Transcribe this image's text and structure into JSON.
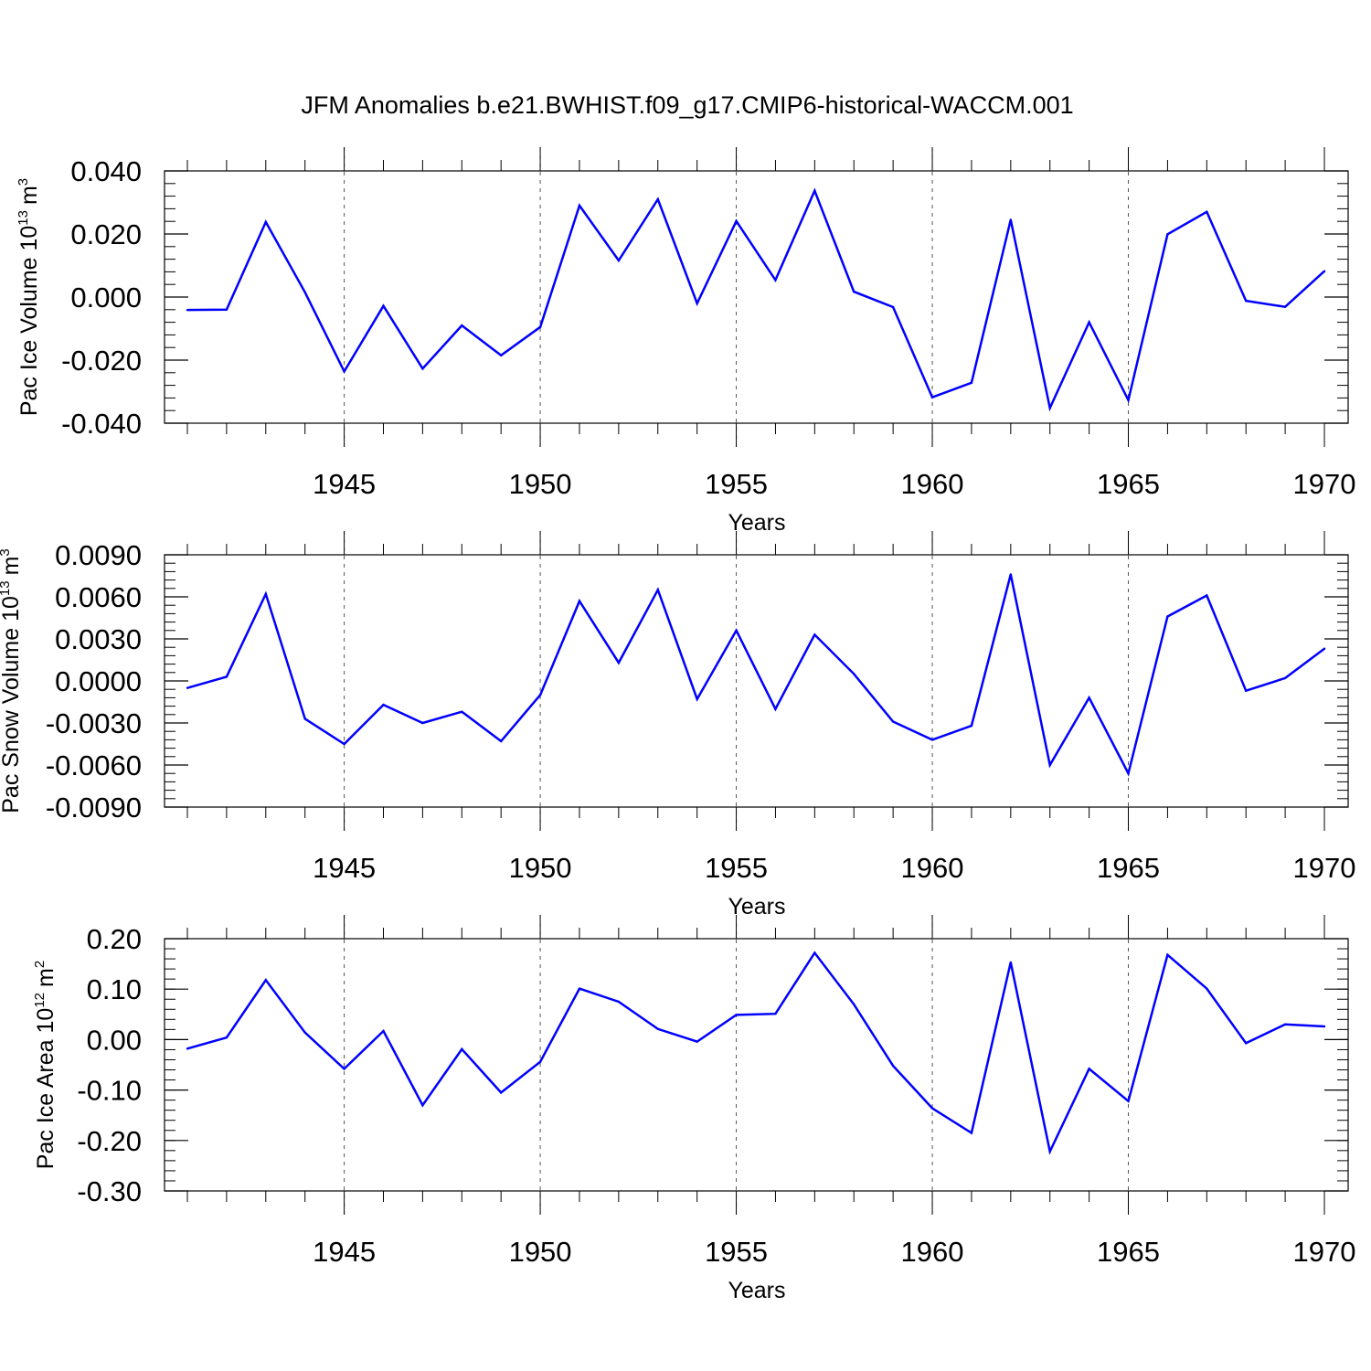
{
  "figure_title": "JFM Anomalies b.e21.BWHIST.f09_g17.CMIP6-historical-WACCM.001",
  "colors": {
    "line": "#0000ff",
    "axis": "#000000",
    "grid": "#555555"
  },
  "chart_data": [
    {
      "type": "line",
      "title": "",
      "xlabel": "Years",
      "ylabel": {
        "text": "Pac Ice Volume 10",
        "exponent": "13",
        "unit": "m",
        "unit_exponent": "3"
      },
      "xlim": [
        1941,
        1970
      ],
      "ylim": [
        -0.04,
        0.04
      ],
      "xticks": [
        "1945",
        "1950",
        "1955",
        "1960",
        "1965",
        "1970"
      ],
      "yticks": [
        "0.040",
        "0.020",
        "0.000",
        "-0.020",
        "-0.040"
      ],
      "ytick_values": [
        0.04,
        0.02,
        0.0,
        -0.02,
        -0.04
      ],
      "ygrid": false,
      "xgrid_dashed": [
        1945,
        1950,
        1955,
        1960,
        1965
      ],
      "x": [
        1941,
        1942,
        1943,
        1944,
        1945,
        1946,
        1947,
        1948,
        1949,
        1950,
        1951,
        1952,
        1953,
        1954,
        1955,
        1956,
        1957,
        1958,
        1959,
        1960,
        1961,
        1962,
        1963,
        1964,
        1965,
        1966,
        1967,
        1968,
        1969,
        1970
      ],
      "series": [
        {
          "name": "Pac Ice Volume",
          "values": [
            -0.0041,
            -0.004,
            0.0238,
            0.0015,
            -0.0236,
            -0.0028,
            -0.0227,
            -0.009,
            -0.0185,
            -0.0095,
            0.029,
            0.0116,
            0.031,
            -0.002,
            0.0241,
            0.0054,
            0.0337,
            0.0017,
            -0.0032,
            -0.0318,
            -0.0272,
            0.0245,
            -0.0352,
            -0.008,
            -0.0327,
            0.0199,
            0.027,
            -0.0012,
            -0.0031,
            0.0082
          ]
        }
      ]
    },
    {
      "type": "line",
      "title": "",
      "xlabel": "Years",
      "ylabel": {
        "text": "Pac Snow Volume 10",
        "exponent": "13",
        "unit": "m",
        "unit_exponent": "3"
      },
      "xlim": [
        1941,
        1970
      ],
      "ylim": [
        -0.009,
        0.009
      ],
      "xticks": [
        "1945",
        "1950",
        "1955",
        "1960",
        "1965",
        "1970"
      ],
      "yticks": [
        "0.0090",
        "0.0060",
        "0.0030",
        "0.0000",
        "-0.0030",
        "-0.0060",
        "-0.0090"
      ],
      "ytick_values": [
        0.009,
        0.006,
        0.003,
        0.0,
        -0.003,
        -0.006,
        -0.009
      ],
      "ygrid": false,
      "xgrid_dashed": [
        1945,
        1950,
        1955,
        1960,
        1965
      ],
      "x": [
        1941,
        1942,
        1943,
        1944,
        1945,
        1946,
        1947,
        1948,
        1949,
        1950,
        1951,
        1952,
        1953,
        1954,
        1955,
        1956,
        1957,
        1958,
        1959,
        1960,
        1961,
        1962,
        1963,
        1964,
        1965,
        1966,
        1967,
        1968,
        1969,
        1970
      ],
      "series": [
        {
          "name": "Pac Snow Volume",
          "values": [
            -0.0005,
            0.0003,
            0.0062,
            -0.0027,
            -0.0045,
            -0.0017,
            -0.003,
            -0.0022,
            -0.0043,
            -0.001,
            0.0057,
            0.0013,
            0.0065,
            -0.0013,
            0.0036,
            -0.002,
            0.0033,
            0.0005,
            -0.0029,
            -0.0042,
            -0.0032,
            0.0076,
            -0.006,
            -0.0012,
            -0.0066,
            0.0046,
            0.0061,
            -0.0007,
            0.0002,
            0.0023
          ]
        }
      ]
    },
    {
      "type": "line",
      "title": "",
      "xlabel": "Years",
      "ylabel": {
        "text": "Pac Ice Area 10",
        "exponent": "12",
        "unit": "m",
        "unit_exponent": "2"
      },
      "xlim": [
        1941,
        1970
      ],
      "ylim": [
        -0.3,
        0.2
      ],
      "xticks": [
        "1945",
        "1950",
        "1955",
        "1960",
        "1965",
        "1970"
      ],
      "yticks": [
        "0.20",
        "0.10",
        "0.00",
        "-0.10",
        "-0.20",
        "-0.30"
      ],
      "ytick_values": [
        0.2,
        0.1,
        0.0,
        -0.1,
        -0.2,
        -0.3
      ],
      "ygrid": false,
      "xgrid_dashed": [
        1945,
        1950,
        1955,
        1960,
        1965
      ],
      "x": [
        1941,
        1942,
        1943,
        1944,
        1945,
        1946,
        1947,
        1948,
        1949,
        1950,
        1951,
        1952,
        1953,
        1954,
        1955,
        1956,
        1957,
        1958,
        1959,
        1960,
        1961,
        1962,
        1963,
        1964,
        1965,
        1966,
        1967,
        1968,
        1969,
        1970
      ],
      "series": [
        {
          "name": "Pac Ice Area",
          "values": [
            -0.018,
            0.004,
            0.118,
            0.014,
            -0.058,
            0.017,
            -0.13,
            -0.019,
            -0.105,
            -0.044,
            0.101,
            0.075,
            0.021,
            -0.004,
            0.049,
            0.051,
            0.172,
            0.07,
            -0.052,
            -0.136,
            -0.185,
            0.153,
            -0.222,
            -0.058,
            -0.122,
            0.168,
            0.101,
            -0.007,
            0.03,
            0.026
          ]
        }
      ]
    }
  ]
}
